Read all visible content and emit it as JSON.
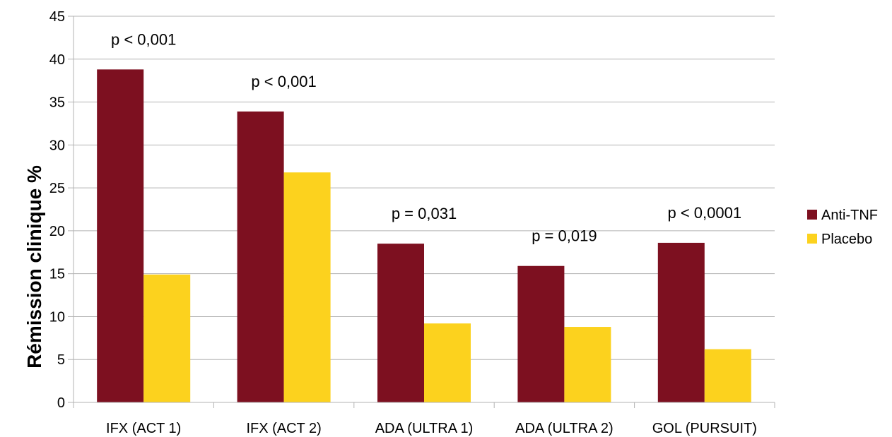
{
  "chart_data": {
    "type": "bar",
    "title": "",
    "xlabel": "",
    "ylabel": "Rémission clinique %",
    "ylim": [
      0,
      45
    ],
    "yticks": [
      0,
      5,
      10,
      15,
      20,
      25,
      30,
      35,
      40,
      45
    ],
    "grid": true,
    "legend_position": "right",
    "categories": [
      "IFX (ACT 1)",
      "IFX (ACT 2)",
      "ADA (ULTRA 1)",
      "ADA (ULTRA 2)",
      "GOL (PURSUIT)"
    ],
    "series": [
      {
        "name": "Anti-TNF",
        "color": "#7d1020",
        "values": [
          38.8,
          33.9,
          18.5,
          15.9,
          18.6
        ]
      },
      {
        "name": "Placebo",
        "color": "#fcd21e",
        "values": [
          14.9,
          26.8,
          9.2,
          8.8,
          6.2
        ]
      }
    ],
    "annotations": [
      "p < 0,001",
      "p < 0,001",
      "p = 0,031",
      "p = 0,019",
      "p < 0,0001"
    ]
  }
}
